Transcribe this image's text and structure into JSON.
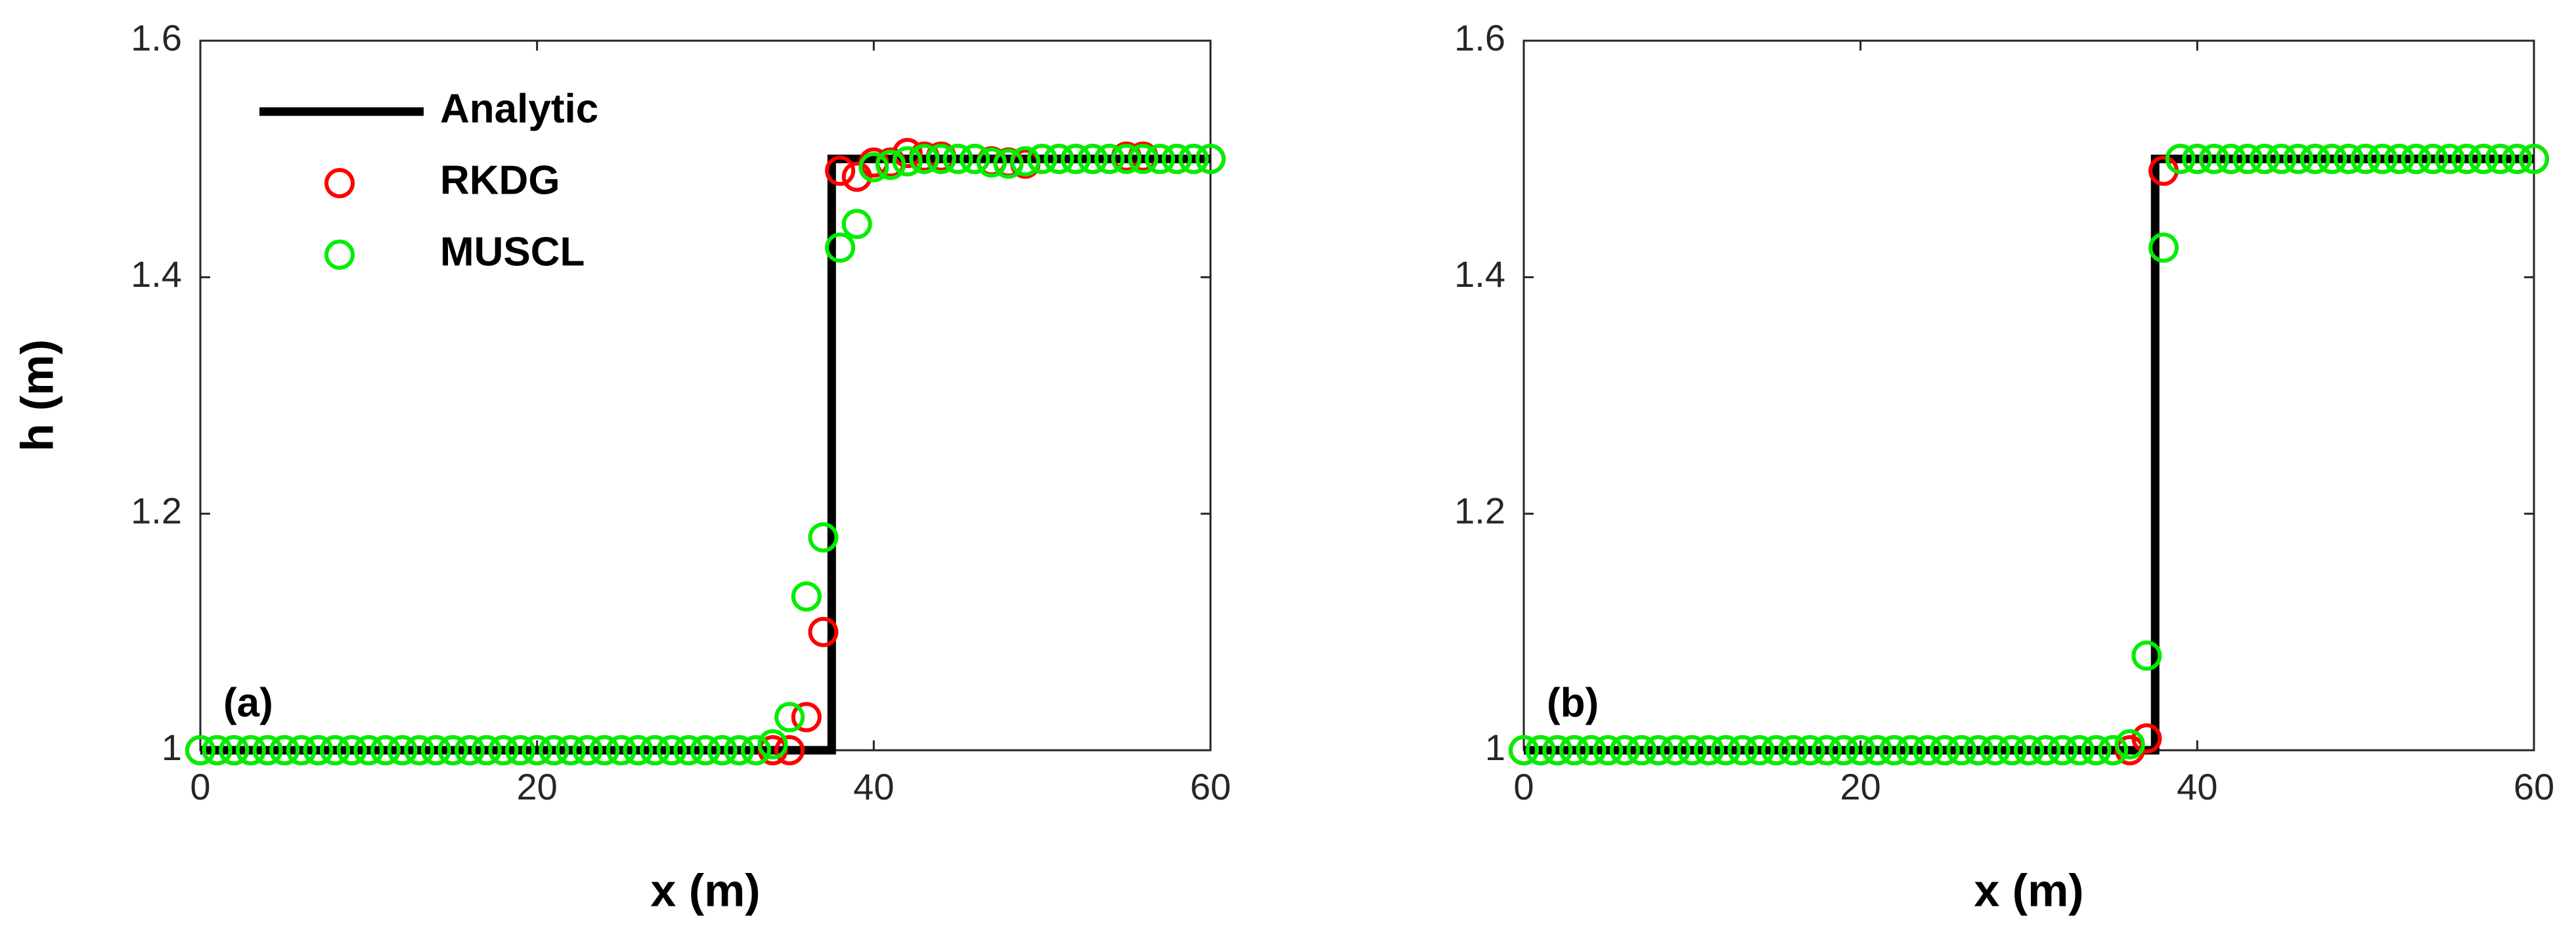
{
  "chart_data": [
    {
      "type": "line",
      "xlabel": "x (m)",
      "ylabel": "h (m)",
      "annotation": "(a)",
      "legend": "upper left",
      "xlim": [
        0,
        60
      ],
      "xticks": [
        0,
        20,
        40,
        60
      ],
      "ylim": [
        1,
        1.6
      ],
      "yticks": [
        1,
        1.2,
        1.4,
        1.6
      ],
      "series": [
        {
          "name": "Analytic",
          "color": "#000000",
          "mode": "line",
          "x": [
            0,
            37.5,
            37.5,
            60
          ],
          "values": [
            1,
            1,
            1.5,
            1.5
          ]
        },
        {
          "name": "RKDG",
          "color": "#ff0000",
          "mode": "markers",
          "x": [
            0,
            1,
            2,
            3,
            4,
            5,
            6,
            7,
            8,
            9,
            10,
            11,
            12,
            13,
            14,
            15,
            16,
            17,
            18,
            19,
            20,
            21,
            22,
            23,
            24,
            25,
            26,
            27,
            28,
            29,
            30,
            31,
            32,
            33,
            34,
            35,
            36,
            37,
            38,
            39,
            40,
            41,
            42,
            43,
            44,
            45,
            46,
            47,
            48,
            49,
            50,
            51,
            52,
            53,
            54,
            55,
            56,
            57,
            58,
            59,
            60
          ],
          "values": [
            1,
            1,
            1,
            1,
            1,
            1,
            1,
            1,
            1,
            1,
            1,
            1,
            1,
            1,
            1,
            1,
            1,
            1,
            1,
            1,
            1,
            1,
            1,
            1,
            1,
            1,
            1,
            1,
            1,
            1,
            1,
            1,
            1,
            1,
            1,
            1,
            1.028,
            1.1,
            1.49,
            1.485,
            1.497,
            1.497,
            1.505,
            1.502,
            1.502,
            1.5,
            1.5,
            1.498,
            1.497,
            1.496,
            1.5,
            1.5,
            1.5,
            1.5,
            1.5,
            1.502,
            1.502,
            1.5,
            1.5,
            1.5,
            1.5
          ]
        },
        {
          "name": "MUSCL",
          "color": "#00ee00",
          "mode": "markers",
          "x": [
            0,
            1,
            2,
            3,
            4,
            5,
            6,
            7,
            8,
            9,
            10,
            11,
            12,
            13,
            14,
            15,
            16,
            17,
            18,
            19,
            20,
            21,
            22,
            23,
            24,
            25,
            26,
            27,
            28,
            29,
            30,
            31,
            32,
            33,
            34,
            35,
            36,
            37,
            38,
            39,
            40,
            41,
            42,
            43,
            44,
            45,
            46,
            47,
            48,
            49,
            50,
            51,
            52,
            53,
            54,
            55,
            56,
            57,
            58,
            59,
            60
          ],
          "values": [
            1,
            1,
            1,
            1,
            1,
            1,
            1,
            1,
            1,
            1,
            1,
            1,
            1,
            1,
            1,
            1,
            1,
            1,
            1,
            1,
            1,
            1,
            1,
            1,
            1,
            1,
            1,
            1,
            1,
            1,
            1,
            1,
            1,
            1,
            1.005,
            1.028,
            1.13,
            1.18,
            1.425,
            1.445,
            1.493,
            1.495,
            1.498,
            1.5,
            1.5,
            1.5,
            1.5,
            1.497,
            1.496,
            1.498,
            1.5,
            1.5,
            1.5,
            1.5,
            1.5,
            1.5,
            1.5,
            1.5,
            1.5,
            1.5,
            1.5
          ]
        }
      ]
    },
    {
      "type": "line",
      "xlabel": "x (m)",
      "annotation": "(b)",
      "legend": false,
      "xlim": [
        0,
        60
      ],
      "xticks": [
        0,
        20,
        40,
        60
      ],
      "ylim": [
        1,
        1.6
      ],
      "yticks": [
        1,
        1.2,
        1.4,
        1.6
      ],
      "series": [
        {
          "name": "Analytic",
          "color": "#000000",
          "mode": "line",
          "x": [
            0,
            37.5,
            37.5,
            60
          ],
          "values": [
            1,
            1,
            1.5,
            1.5
          ]
        },
        {
          "name": "RKDG",
          "color": "#ff0000",
          "mode": "markers",
          "x": [
            0,
            1,
            2,
            3,
            4,
            5,
            6,
            7,
            8,
            9,
            10,
            11,
            12,
            13,
            14,
            15,
            16,
            17,
            18,
            19,
            20,
            21,
            22,
            23,
            24,
            25,
            26,
            27,
            28,
            29,
            30,
            31,
            32,
            33,
            34,
            35,
            36,
            37,
            38,
            39,
            40,
            41,
            42,
            43,
            44,
            45,
            46,
            47,
            48,
            49,
            50,
            51,
            52,
            53,
            54,
            55,
            56,
            57,
            58,
            59,
            60
          ],
          "values": [
            1,
            1,
            1,
            1,
            1,
            1,
            1,
            1,
            1,
            1,
            1,
            1,
            1,
            1,
            1,
            1,
            1,
            1,
            1,
            1,
            1,
            1,
            1,
            1,
            1,
            1,
            1,
            1,
            1,
            1,
            1,
            1,
            1,
            1,
            1,
            1,
            1,
            1.01,
            1.49,
            1.5,
            1.5,
            1.5,
            1.5,
            1.5,
            1.5,
            1.5,
            1.5,
            1.5,
            1.5,
            1.5,
            1.5,
            1.5,
            1.5,
            1.5,
            1.5,
            1.5,
            1.5,
            1.5,
            1.5,
            1.5,
            1.5
          ]
        },
        {
          "name": "MUSCL",
          "color": "#00ee00",
          "mode": "markers",
          "x": [
            0,
            1,
            2,
            3,
            4,
            5,
            6,
            7,
            8,
            9,
            10,
            11,
            12,
            13,
            14,
            15,
            16,
            17,
            18,
            19,
            20,
            21,
            22,
            23,
            24,
            25,
            26,
            27,
            28,
            29,
            30,
            31,
            32,
            33,
            34,
            35,
            36,
            37,
            38,
            39,
            40,
            41,
            42,
            43,
            44,
            45,
            46,
            47,
            48,
            49,
            50,
            51,
            52,
            53,
            54,
            55,
            56,
            57,
            58,
            59,
            60
          ],
          "values": [
            1,
            1,
            1,
            1,
            1,
            1,
            1,
            1,
            1,
            1,
            1,
            1,
            1,
            1,
            1,
            1,
            1,
            1,
            1,
            1,
            1,
            1,
            1,
            1,
            1,
            1,
            1,
            1,
            1,
            1,
            1,
            1,
            1,
            1,
            1,
            1,
            1.005,
            1.08,
            1.425,
            1.5,
            1.5,
            1.5,
            1.5,
            1.5,
            1.5,
            1.5,
            1.5,
            1.5,
            1.5,
            1.5,
            1.5,
            1.5,
            1.5,
            1.5,
            1.5,
            1.5,
            1.5,
            1.5,
            1.5,
            1.5,
            1.5
          ]
        }
      ]
    }
  ]
}
